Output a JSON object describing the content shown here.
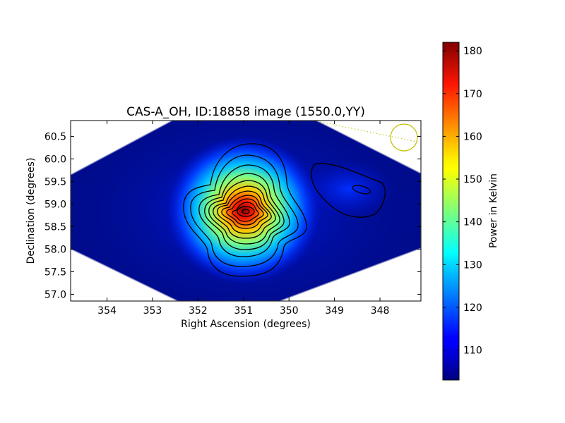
{
  "chart_data": {
    "type": "heatmap",
    "title": "CAS-A_OH, ID:18858 image (1550.0,YY)",
    "xlabel": "Right Ascension (degrees)",
    "ylabel": "Declination (degrees)",
    "colorbar_label": "Power in Kelvin",
    "colormap": "jet",
    "x_axis_inverted": true,
    "xlim": [
      354.8,
      347.1
    ],
    "ylim": [
      56.85,
      60.85
    ],
    "x_ticks": [
      354,
      353,
      352,
      351,
      350,
      349,
      348
    ],
    "y_ticks": [
      57.0,
      57.5,
      58.0,
      58.5,
      59.0,
      59.5,
      60.0,
      60.5
    ],
    "colorbar_range": [
      103,
      182
    ],
    "colorbar_ticks": [
      110,
      120,
      130,
      140,
      150,
      160,
      170,
      180
    ],
    "background_level": 106,
    "grid": false,
    "sources": [
      {
        "ra": 350.85,
        "dec": 58.82,
        "peak": 182
      },
      {
        "ra": 348.35,
        "dec": 59.32,
        "peak": 113
      }
    ],
    "beam": {
      "ra": 347.4,
      "dec": 60.47,
      "color": "#bfbf00"
    }
  }
}
